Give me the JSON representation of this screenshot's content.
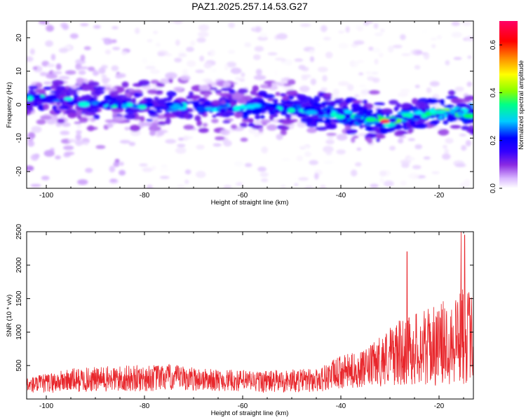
{
  "title": "PAZ1.2025.257.14.53.G27",
  "chart_data": [
    {
      "type": "heatmap",
      "xlabel": "Height of straight line (km)",
      "ylabel": "Frequency (Hz)",
      "xlim": [
        -104,
        -13
      ],
      "ylim": [
        -25,
        25
      ],
      "x_ticks": [
        -100,
        -80,
        -60,
        -40,
        -20
      ],
      "y_ticks": [
        -20,
        -10,
        0,
        10,
        20
      ],
      "colorbar": {
        "label": "Normalized spectral amplitude",
        "range": [
          0,
          0.7
        ],
        "ticks": [
          0.0,
          0.2,
          0.4,
          0.6
        ],
        "colormap": [
          "#ffffff",
          "#d9b7ff",
          "#8a2be2",
          "#3300ff",
          "#0000ff",
          "#00ffff",
          "#00ff55",
          "#aaff00",
          "#ffff00",
          "#ff8800",
          "#ff0000",
          "#ff0055"
        ]
      },
      "ridge": {
        "description_points": [
          {
            "x": -100,
            "y": 2
          },
          {
            "x": -90,
            "y": 0
          },
          {
            "x": -80,
            "y": 0
          },
          {
            "x": -70,
            "y": -1
          },
          {
            "x": -60,
            "y": -1
          },
          {
            "x": -50,
            "y": -1
          },
          {
            "x": -45,
            "y": -2
          },
          {
            "x": -40,
            "y": -3
          },
          {
            "x": -35,
            "y": -4
          },
          {
            "x": -30,
            "y": -5
          },
          {
            "x": -25,
            "y": -3
          },
          {
            "x": -20,
            "y": -2
          },
          {
            "x": -15,
            "y": -3
          }
        ],
        "peak": {
          "x": -31,
          "y": -5,
          "value": 0.7
        }
      }
    },
    {
      "type": "line",
      "xlabel": "Height of straight line (km)",
      "ylabel": "SNR (10 * v/v)",
      "xlim": [
        -104,
        -13
      ],
      "ylim": [
        0,
        2500
      ],
      "x_ticks": [
        -100,
        -80,
        -60,
        -40,
        -20
      ],
      "y_ticks": [
        500,
        1000,
        1500,
        2000,
        2500
      ],
      "series_color": "#e8262b",
      "envelope": [
        {
          "x": -104,
          "mean": 200,
          "amp": 120
        },
        {
          "x": -95,
          "mean": 280,
          "amp": 180
        },
        {
          "x": -85,
          "mean": 300,
          "amp": 200
        },
        {
          "x": -75,
          "mean": 320,
          "amp": 200
        },
        {
          "x": -65,
          "mean": 280,
          "amp": 160
        },
        {
          "x": -55,
          "mean": 260,
          "amp": 170
        },
        {
          "x": -45,
          "mean": 280,
          "amp": 180
        },
        {
          "x": -40,
          "mean": 400,
          "amp": 250
        },
        {
          "x": -35,
          "mean": 450,
          "amp": 280
        },
        {
          "x": -30,
          "mean": 650,
          "amp": 450
        },
        {
          "x": -25,
          "mean": 750,
          "amp": 550
        },
        {
          "x": -20,
          "mean": 800,
          "amp": 600
        },
        {
          "x": -15,
          "mean": 1000,
          "amp": 800
        },
        {
          "x": -13,
          "mean": 900,
          "amp": 600
        }
      ],
      "peaks": [
        {
          "x": -26.5,
          "y": 2200
        },
        {
          "x": -15.5,
          "y": 2500
        },
        {
          "x": -14.8,
          "y": 2450
        }
      ]
    }
  ]
}
